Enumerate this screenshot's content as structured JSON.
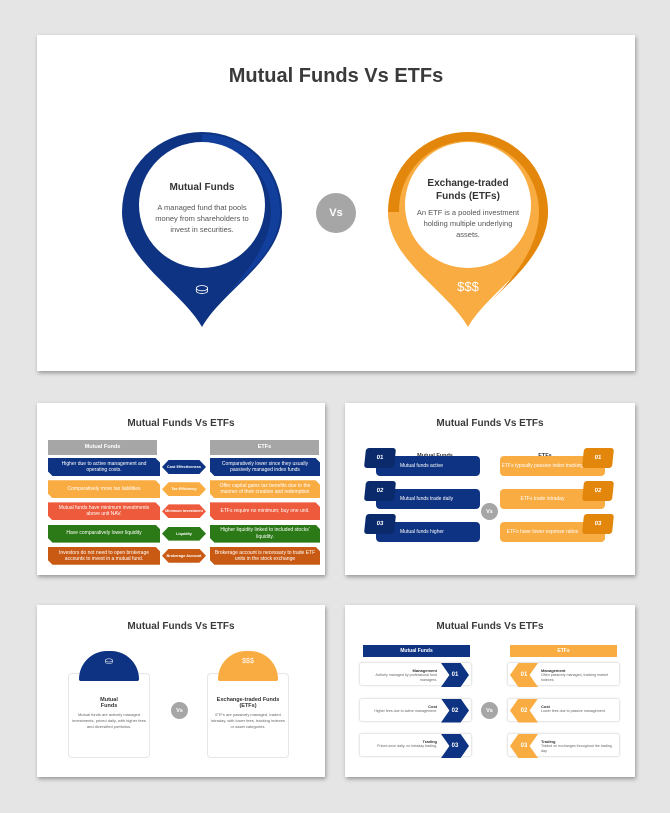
{
  "title": "Mutual Funds Vs ETFs",
  "vs": "Vs",
  "colors": {
    "blue": "#0d3382",
    "orange": "#f9ac42",
    "dark_orange": "#e3870c",
    "gray": "#a6a6a6"
  },
  "main": {
    "mutual": {
      "title": "Mutual Funds",
      "text": "A managed fund that pools money from shareholders to invest in securities.",
      "icon": "hand-coins-icon"
    },
    "etf": {
      "title": "Exchange-traded Funds (ETFs)",
      "text": "An ETF is a pooled investment holding multiple underlying assets.",
      "icon": "money-bags-icon"
    }
  },
  "slide2": {
    "headers": [
      "Mutual Funds",
      "ETFs"
    ],
    "rows": [
      {
        "left": "Higher due to active management and operating costs.",
        "mid": "Cost Effectiveness",
        "right": "Comparatively lower since they usually passively managed index funds",
        "color": "#0d3382"
      },
      {
        "left": "Comparatively more tax liabilities",
        "mid": "Tax Efficiency",
        "right": "Offer capital gains tax benefits due to the manner of their creation and redemption",
        "color": "#f9ac42"
      },
      {
        "left": "Mutual funds have minimum investments above unit NAV.",
        "mid": "Minimum Investment",
        "right": "ETFs require no minimum; buy one unit.",
        "color": "#ee5a3c"
      },
      {
        "left": "Have comparatively lower liquidity",
        "mid": "Liquidity",
        "right": "Higher liquidity linked to included stocks' liquidity.",
        "color": "#2b7a17"
      },
      {
        "left": "Investors do not need to open brokerage accounts to invest in a mutual fund.",
        "mid": "Brokerage Account",
        "right": "Brokerage account is necessary to trade ETF units in the stock exchange",
        "color": "#c95a14"
      }
    ]
  },
  "slide3": {
    "headers": [
      "Mutual Funds",
      "ETFs"
    ],
    "left": [
      {
        "num": "01",
        "text": "Mutual funds active"
      },
      {
        "num": "02",
        "text": "Mutual funds trade daily"
      },
      {
        "num": "03",
        "text": "Mutual funds higher"
      }
    ],
    "right": [
      {
        "num": "01",
        "text": "ETFs typically passive index tracking"
      },
      {
        "num": "02",
        "text": "ETFs trade intraday"
      },
      {
        "num": "03",
        "text": "ETFs have lower expense ratios"
      }
    ]
  },
  "slide4": {
    "mutual": {
      "title": "Mutual Funds",
      "text": "Mutual funds are actively managed investments, priced daily, with higher fees and diversified portfolios."
    },
    "etf": {
      "title": "Exchange-traded Funds (ETFs)",
      "text": "ETFs are passively managed, traded intraday, with lower fees, tracking indexes or asset categories."
    }
  },
  "slide5": {
    "headers": [
      "Mutual Funds",
      "ETFs"
    ],
    "left": [
      {
        "num": "01",
        "label": "Management",
        "text": "Actively managed by professional fund managers."
      },
      {
        "num": "02",
        "label": "Cost",
        "text": "Higher fees due to active management."
      },
      {
        "num": "03",
        "label": "Trading",
        "text": "Priced once daily, no intraday trading."
      }
    ],
    "right": [
      {
        "num": "01",
        "label": "Management",
        "text": "Often passively managed, tracking market indexes."
      },
      {
        "num": "02",
        "label": "Cost",
        "text": "Lower fees due to passive management."
      },
      {
        "num": "03",
        "label": "Trading",
        "text": "Traded on exchanges throughout the trading day."
      }
    ]
  }
}
